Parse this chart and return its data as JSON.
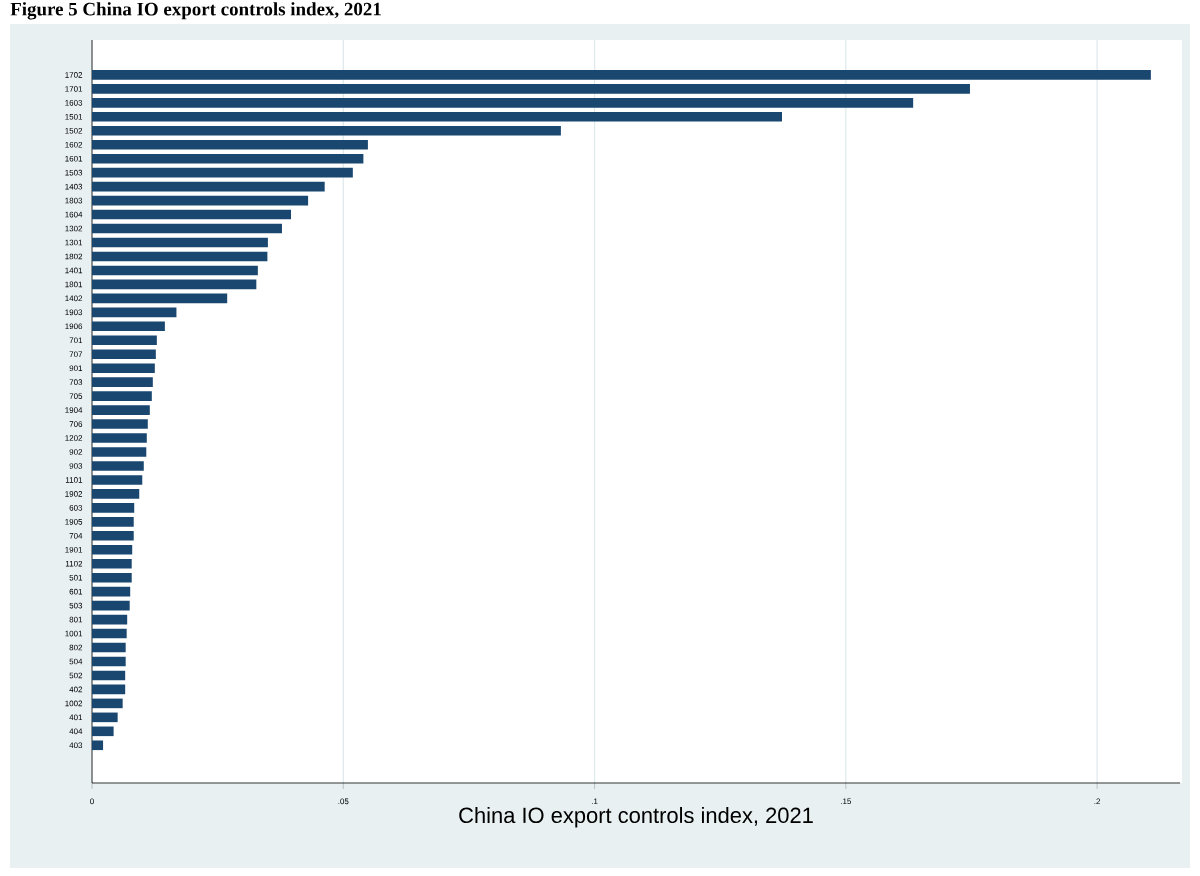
{
  "chart_data": {
    "type": "bar",
    "orientation": "horizontal",
    "title": "Figure 5 China IO export controls index, 2021",
    "xlabel": "China IO export controls index, 2021",
    "categories": [
      "1702",
      "1701",
      "1603",
      "1501",
      "1502",
      "1602",
      "1601",
      "1503",
      "1403",
      "1803",
      "1604",
      "1302",
      "1301",
      "1802",
      "1401",
      "1801",
      "1402",
      "1903",
      "1906",
      "701",
      "707",
      "901",
      "703",
      "705",
      "1904",
      "706",
      "1202",
      "902",
      "903",
      "1101",
      "1902",
      "603",
      "1905",
      "704",
      "1901",
      "1102",
      "501",
      "601",
      "503",
      "801",
      "1001",
      "802",
      "504",
      "502",
      "402",
      "1002",
      "401",
      "404",
      "403"
    ],
    "values": [
      0.2107,
      0.1747,
      0.1634,
      0.1373,
      0.0933,
      0.0549,
      0.054,
      0.0519,
      0.0463,
      0.043,
      0.0396,
      0.0378,
      0.035,
      0.0349,
      0.033,
      0.0327,
      0.0269,
      0.0168,
      0.0145,
      0.0129,
      0.0127,
      0.0125,
      0.0121,
      0.0119,
      0.0115,
      0.0111,
      0.0109,
      0.0108,
      0.0103,
      0.01,
      0.0094,
      0.0084,
      0.0083,
      0.0083,
      0.008,
      0.0079,
      0.0079,
      0.0076,
      0.0075,
      0.007,
      0.0069,
      0.0067,
      0.0067,
      0.0066,
      0.0066,
      0.0061,
      0.0051,
      0.0043,
      0.0022
    ],
    "color": "#1a476f",
    "xlim": [
      0,
      0.2165
    ],
    "xticks": [
      0,
      {
        "value": 0.05,
        "label": ".05"
      },
      {
        "value": 0.1,
        "label": ".1"
      },
      {
        "value": 0.15,
        "label": ".15"
      },
      {
        "value": 0.2,
        "label": ".2"
      }
    ],
    "grid": "x"
  }
}
